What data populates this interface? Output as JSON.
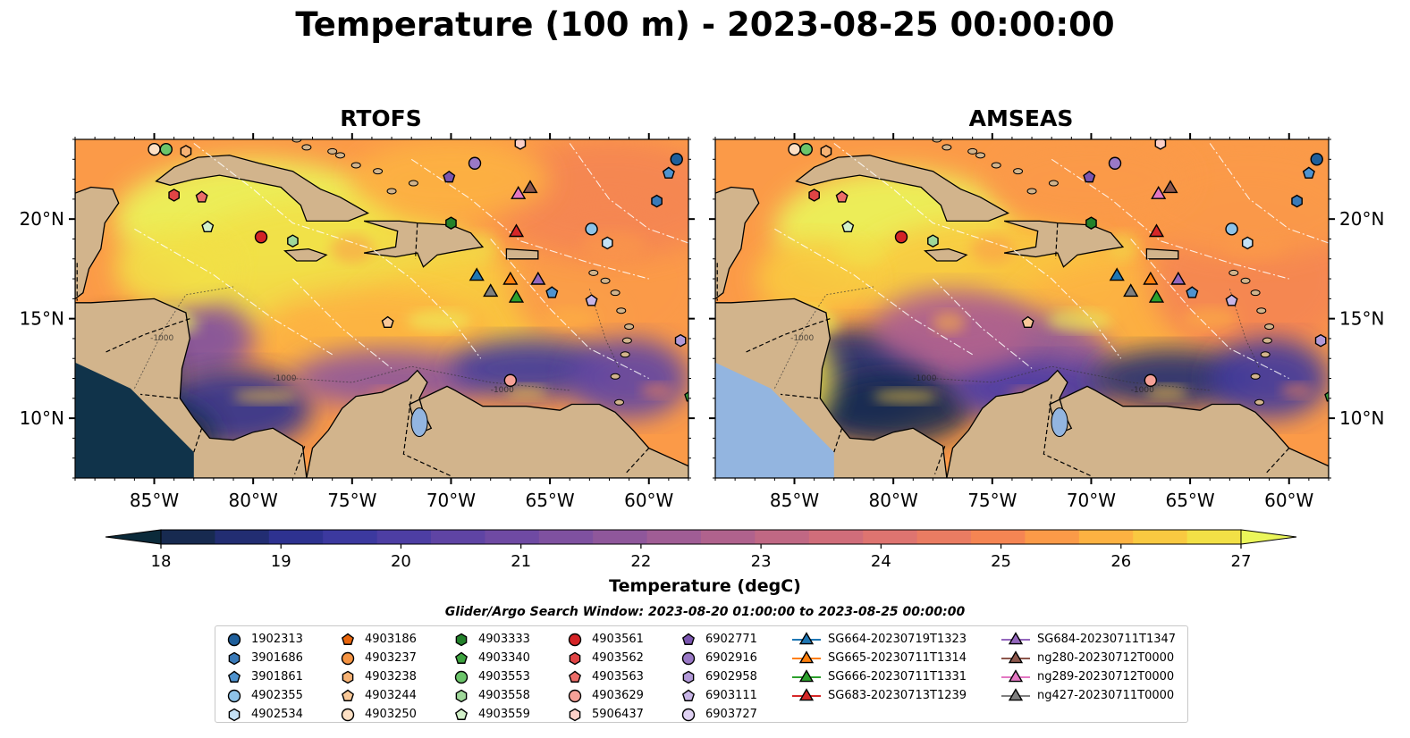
{
  "title": "Temperature (100 m) - 2023-08-25 00:00:00",
  "panels": [
    {
      "title": "RTOFS"
    },
    {
      "title": "AMSEAS"
    }
  ],
  "map": {
    "lon_range": [
      -89,
      -58
    ],
    "lat_range": [
      7,
      24
    ],
    "lon_ticks": [
      -85,
      -80,
      -75,
      -70,
      -65,
      -60
    ],
    "lon_tick_labels": [
      "85°W",
      "80°W",
      "75°W",
      "70°W",
      "65°W",
      "60°W"
    ],
    "lat_ticks": [
      10,
      15,
      20
    ],
    "lat_tick_labels": [
      "10°N",
      "15°N",
      "20°N"
    ],
    "land_color": "#d2b48c",
    "ocean_color": "#93b5e0",
    "contour_label": "-1000"
  },
  "colorbar": {
    "label": "Temperature (degC)",
    "min": 18,
    "max": 27,
    "step": 0.5,
    "ticks": [
      18,
      19,
      20,
      21,
      22,
      23,
      24,
      25,
      26,
      27
    ],
    "tick_labels": [
      "18",
      "19",
      "20",
      "21",
      "22",
      "23",
      "24",
      "25",
      "26",
      "27"
    ],
    "colors": [
      "#0b2a3a",
      "#172a50",
      "#222d72",
      "#2e3290",
      "#3c399f",
      "#4d3ea3",
      "#5f44a4",
      "#6f4aa3",
      "#7f51a0",
      "#8f579b",
      "#a05d95",
      "#b0628d",
      "#c06884",
      "#d06d7a",
      "#de7470",
      "#ea7c62",
      "#f58553",
      "#fb9a48",
      "#fdb242",
      "#f9c941",
      "#f2e046",
      "#ebf65a"
    ]
  },
  "legend": {
    "title": "Glider/Argo Search Window: 2023-08-20 01:00:00 to 2023-08-25 00:00:00",
    "items": [
      {
        "label": "1902313",
        "marker": "circle",
        "color": "#1f5f9b"
      },
      {
        "label": "3901686",
        "marker": "hexagon",
        "color": "#3a7ab8"
      },
      {
        "label": "3901861",
        "marker": "pentagon",
        "color": "#4f93cf"
      },
      {
        "label": "4902355",
        "marker": "circle",
        "color": "#8ec3e8"
      },
      {
        "label": "4902534",
        "marker": "hexagon",
        "color": "#c4e1f5"
      },
      {
        "label": "4903186",
        "marker": "pentagon",
        "color": "#e8650c"
      },
      {
        "label": "4903237",
        "marker": "circle",
        "color": "#f59443"
      },
      {
        "label": "4903238",
        "marker": "hexagon",
        "color": "#f6b274"
      },
      {
        "label": "4903244",
        "marker": "pentagon",
        "color": "#f8c898"
      },
      {
        "label": "4903250",
        "marker": "circle",
        "color": "#fde0c4"
      },
      {
        "label": "4903333",
        "marker": "hexagon",
        "color": "#23822b"
      },
      {
        "label": "4903340",
        "marker": "pentagon",
        "color": "#3da33f"
      },
      {
        "label": "4903553",
        "marker": "circle",
        "color": "#6bc46a"
      },
      {
        "label": "4903558",
        "marker": "hexagon",
        "color": "#9fd89a"
      },
      {
        "label": "4903559",
        "marker": "pentagon",
        "color": "#d2f0c9"
      },
      {
        "label": "4903561",
        "marker": "circle",
        "color": "#d42326"
      },
      {
        "label": "4903562",
        "marker": "hexagon",
        "color": "#e04445"
      },
      {
        "label": "4903563",
        "marker": "pentagon",
        "color": "#ec6c68"
      },
      {
        "label": "4903629",
        "marker": "circle",
        "color": "#f6a197"
      },
      {
        "label": "5906437",
        "marker": "hexagon",
        "color": "#fcd0c8"
      },
      {
        "label": "6902771",
        "marker": "pentagon",
        "color": "#7b56b0"
      },
      {
        "label": "6902916",
        "marker": "circle",
        "color": "#9a79c6"
      },
      {
        "label": "6902958",
        "marker": "hexagon",
        "color": "#b299d8"
      },
      {
        "label": "6903111",
        "marker": "pentagon",
        "color": "#c8b5e6"
      },
      {
        "label": "6903727",
        "marker": "circle",
        "color": "#e0d2f3"
      },
      {
        "label": "SG664-20230719T1323",
        "marker": "triangle-line",
        "color": "#1f77b4"
      },
      {
        "label": "SG665-20230711T1314",
        "marker": "triangle-line",
        "color": "#ff7f0e"
      },
      {
        "label": "SG666-20230711T1331",
        "marker": "triangle-line",
        "color": "#2ca02c"
      },
      {
        "label": "SG683-20230713T1239",
        "marker": "triangle-line",
        "color": "#d62728"
      },
      {
        "label": "SG684-20230711T1347",
        "marker": "triangle-line",
        "color": "#9467bd"
      },
      {
        "label": "ng280-20230712T0000",
        "marker": "triangle-line",
        "color": "#8c564b"
      },
      {
        "label": "ng289-20230712T0000",
        "marker": "triangle-line",
        "color": "#e377c2"
      },
      {
        "label": "ng427-20230711T0000",
        "marker": "triangle-line",
        "color": "#7f7f7f"
      }
    ]
  },
  "observations": [
    {
      "id": "1902313",
      "lon": -58.6,
      "lat": 23.0
    },
    {
      "id": "3901686",
      "lon": -59.6,
      "lat": 20.9
    },
    {
      "id": "3901861",
      "lon": -59.0,
      "lat": 22.3
    },
    {
      "id": "4902355",
      "lon": -62.9,
      "lat": 19.5
    },
    {
      "id": "4902534",
      "lon": -62.1,
      "lat": 18.8
    },
    {
      "id": "4903244",
      "lon": -73.2,
      "lat": 14.8
    },
    {
      "id": "4903250",
      "lon": -85.0,
      "lat": 23.5
    },
    {
      "id": "4903238",
      "lon": -83.4,
      "lat": 23.4
    },
    {
      "id": "4903333",
      "lon": -70.0,
      "lat": 19.8
    },
    {
      "id": "4903340",
      "lon": -57.9,
      "lat": 11.1
    },
    {
      "id": "4903553",
      "lon": -84.4,
      "lat": 23.5
    },
    {
      "id": "4903558",
      "lon": -78.0,
      "lat": 18.9
    },
    {
      "id": "4903559",
      "lon": -82.3,
      "lat": 19.6
    },
    {
      "id": "4903561",
      "lon": -79.6,
      "lat": 19.1
    },
    {
      "id": "4903562",
      "lon": -84.0,
      "lat": 21.2
    },
    {
      "id": "4903563",
      "lon": -82.6,
      "lat": 21.1
    },
    {
      "id": "4903629",
      "lon": -67.0,
      "lat": 11.9
    },
    {
      "id": "5906437",
      "lon": -66.5,
      "lat": 23.8
    },
    {
      "id": "6902771",
      "lon": -70.1,
      "lat": 22.1
    },
    {
      "id": "6902916",
      "lon": -68.8,
      "lat": 22.8
    },
    {
      "id": "6902958",
      "lon": -58.4,
      "lat": 13.9
    },
    {
      "id": "6903111",
      "lon": -62.9,
      "lat": 15.9
    },
    {
      "id": "3901861b",
      "lon": -64.9,
      "lat": 16.3
    },
    {
      "id": "SG664-20230719T1323",
      "lon": -68.7,
      "lat": 17.2
    },
    {
      "id": "SG665-20230711T1314",
      "lon": -67.0,
      "lat": 17.0
    },
    {
      "id": "SG666-20230711T1331",
      "lon": -66.7,
      "lat": 16.1
    },
    {
      "id": "SG683-20230713T1239",
      "lon": -66.7,
      "lat": 19.4
    },
    {
      "id": "SG684-20230711T1347",
      "lon": -65.6,
      "lat": 17.0
    },
    {
      "id": "ng280-20230712T0000",
      "lon": -66.0,
      "lat": 21.6
    },
    {
      "id": "ng289-20230712T0000",
      "lon": -66.6,
      "lat": 21.3
    },
    {
      "id": "ng427-20230711T0000",
      "lon": -68.0,
      "lat": 16.4
    }
  ]
}
